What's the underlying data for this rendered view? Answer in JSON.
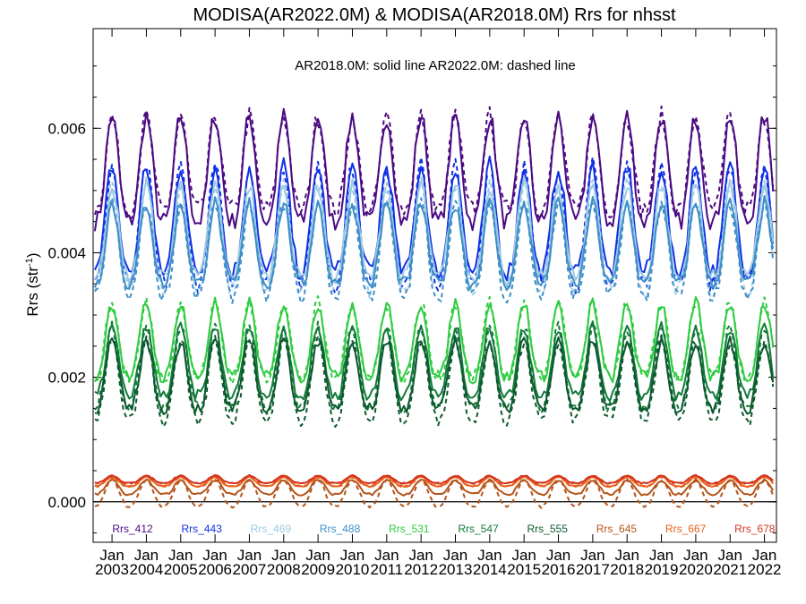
{
  "chart_data": {
    "type": "line",
    "title": "MODISA(AR2022.0M) & MODISA(AR2018.0M)  Rrs for nhsst",
    "subtitle": "AR2018.0M: solid line   AR2022.0M: dashed line",
    "ylabel": "Rrs (str",
    "ylabel_sup": "-1",
    "ylabel_close": ")",
    "ylim": [
      -0.00065,
      0.0076
    ],
    "xlim": [
      2002.45,
      2022.35
    ],
    "yticks": [
      "0.000",
      "0.002",
      "0.004",
      "0.006"
    ],
    "ytick_values": [
      0.0,
      0.002,
      0.004,
      0.006
    ],
    "xtick_month": "Jan",
    "xtick_years": [
      "2003",
      "2004",
      "2005",
      "2006",
      "2007",
      "2008",
      "2009",
      "2010",
      "2011",
      "2012",
      "2013",
      "2014",
      "2015",
      "2016",
      "2017",
      "2018",
      "2019",
      "2020",
      "2021",
      "2022"
    ],
    "zero_line": true,
    "legend_position": "bottom",
    "line_styles": {
      "AR2018.0M": "solid",
      "AR2022.0M": "dashed"
    },
    "series": [
      {
        "name": "Rrs_412",
        "color": "#4b0a82",
        "low": 0.0045,
        "high": 0.0062,
        "phase": 0.0,
        "dash_offset": 0.0001
      },
      {
        "name": "Rrs_443",
        "color": "#1030e6",
        "low": 0.0037,
        "high": 0.0054,
        "phase": 0.0,
        "dash_offset": -0.0001
      },
      {
        "name": "Rrs_469",
        "color": "#9ecae1",
        "low": 0.0036,
        "high": 0.0051,
        "phase": 0.0,
        "dash_offset": -0.0001
      },
      {
        "name": "Rrs_488",
        "color": "#3d8fc8",
        "low": 0.0035,
        "high": 0.0048,
        "phase": 0.0,
        "dash_offset": -0.0001
      },
      {
        "name": "Rrs_531",
        "color": "#2ecc40",
        "low": 0.002,
        "high": 0.0032,
        "phase": 0.0,
        "dash_offset": 0.0
      },
      {
        "name": "Rrs_547",
        "color": "#127a3a",
        "low": 0.0017,
        "high": 0.0028,
        "phase": 0.0,
        "dash_offset": -0.0001
      },
      {
        "name": "Rrs_555",
        "color": "#0c5a2e",
        "low": 0.0015,
        "high": 0.0026,
        "phase": 0.0,
        "dash_offset": -0.0001
      },
      {
        "name": "Rrs_645",
        "color": "#b5541a",
        "low": 0.00012,
        "high": 0.00035,
        "phase": 0.0,
        "dash_offset": -0.0001
      },
      {
        "name": "Rrs_667",
        "color": "#e8601a",
        "low": 0.00025,
        "high": 0.0004,
        "phase": 0.0,
        "dash_offset": 0.0
      },
      {
        "name": "Rrs_678",
        "color": "#d43520",
        "low": 0.0003,
        "high": 0.00042,
        "phase": 0.0,
        "dash_offset": 0.0
      }
    ]
  }
}
